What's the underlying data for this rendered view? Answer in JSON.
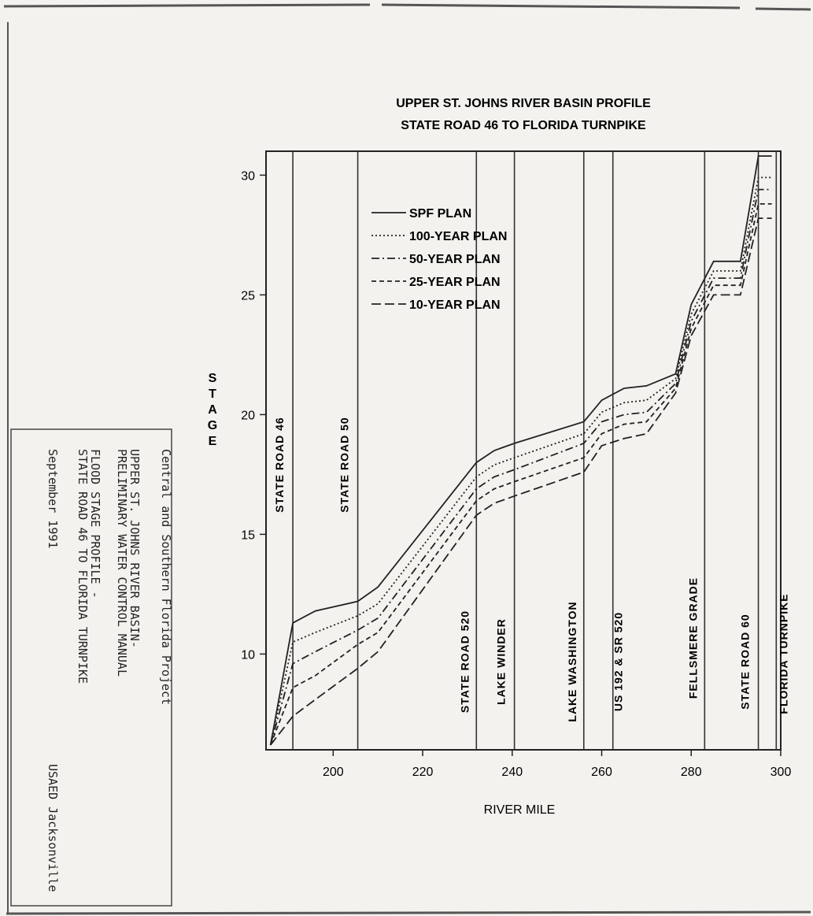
{
  "title_block": {
    "line1": "Central and Southern Florida Project",
    "line2": "UPPER ST. JOHNS RIVER BASIN-",
    "line3": "PRELIMINARY WATER CONTROL MANUAL",
    "line4": "FLOOD STAGE PROFILE -",
    "line5": "STATE ROAD 46 TO FLORIDA TURNPIKE",
    "date": "September 1991",
    "agency": "USAED Jacksonville"
  },
  "chart_data": {
    "type": "line",
    "title": "UPPER ST. JOHNS RIVER BASIN PROFILE",
    "subtitle": "STATE ROAD 46 TO FLORIDA TURNPIKE",
    "xlabel": "RIVER MILE",
    "ylabel": "STAGE",
    "xlim": [
      185,
      300
    ],
    "ylim": [
      6,
      31
    ],
    "xticks": [
      200,
      220,
      240,
      260,
      280,
      300
    ],
    "yticks": [
      10,
      15,
      20,
      25,
      30
    ],
    "grid": false,
    "legend_position": "top-left",
    "landmarks": [
      {
        "name": "STATE ROAD 46",
        "x": 191
      },
      {
        "name": "STATE ROAD 50",
        "x": 205.5
      },
      {
        "name": "STATE ROAD 520",
        "x": 232
      },
      {
        "name": "LAKE WINDER",
        "x": 240.5
      },
      {
        "name": "LAKE WASHINGTON",
        "x": 256
      },
      {
        "name": "US 192 & SR 520",
        "x": 262.5
      },
      {
        "name": "FELLSMERE GRADE",
        "x": 283
      },
      {
        "name": "STATE ROAD 60",
        "x": 295
      },
      {
        "name": "FLORIDA TURNPIKE",
        "x": 299
      }
    ],
    "series": [
      {
        "name": "SPF PLAN",
        "dash": "solid",
        "x": [
          186,
          191,
          196,
          205.5,
          210,
          232,
          236,
          240.5,
          256,
          260,
          265,
          270,
          276.5,
          280,
          285,
          291,
          295,
          298
        ],
        "y": [
          6.2,
          11.3,
          11.8,
          12.2,
          12.8,
          18.0,
          18.5,
          18.8,
          19.7,
          20.6,
          21.1,
          21.2,
          21.7,
          24.6,
          26.4,
          26.4,
          30.8,
          30.8
        ]
      },
      {
        "name": "100-YEAR PLAN",
        "dash": "dotted",
        "x": [
          186,
          191,
          196,
          205.5,
          210,
          232,
          236,
          240.5,
          256,
          260,
          265,
          270,
          276.5,
          280,
          285,
          291,
          295,
          298
        ],
        "y": [
          6.2,
          10.5,
          10.9,
          11.6,
          12.1,
          17.4,
          17.9,
          18.2,
          19.2,
          20.1,
          20.5,
          20.6,
          21.5,
          24.2,
          26.0,
          26.0,
          29.9,
          29.9
        ]
      },
      {
        "name": "50-YEAR PLAN",
        "dash": "dash-dot",
        "x": [
          186,
          191,
          196,
          205.5,
          210,
          232,
          236,
          240.5,
          256,
          260,
          265,
          270,
          276.5,
          280,
          285,
          291,
          295,
          298
        ],
        "y": [
          6.2,
          9.6,
          10.1,
          11.0,
          11.5,
          16.9,
          17.4,
          17.7,
          18.8,
          19.7,
          20.0,
          20.1,
          21.3,
          23.9,
          25.7,
          25.7,
          29.4,
          29.4
        ]
      },
      {
        "name": "25-YEAR PLAN",
        "dash": "dashed",
        "x": [
          186,
          191,
          196,
          205.5,
          210,
          232,
          236,
          240.5,
          256,
          260,
          265,
          270,
          276.5,
          280,
          285,
          291,
          295,
          298
        ],
        "y": [
          6.2,
          8.6,
          9.1,
          10.4,
          10.9,
          16.4,
          16.9,
          17.2,
          18.2,
          19.2,
          19.6,
          19.7,
          21.1,
          23.6,
          25.4,
          25.4,
          28.8,
          28.8
        ]
      },
      {
        "name": "10-YEAR PLAN",
        "dash": "long-dash",
        "x": [
          186,
          191,
          196,
          205.5,
          210,
          232,
          236,
          240.5,
          256,
          260,
          265,
          270,
          276.5,
          280,
          285,
          291,
          295,
          298
        ],
        "y": [
          6.2,
          7.4,
          8.1,
          9.4,
          10.1,
          15.8,
          16.3,
          16.6,
          17.6,
          18.7,
          19.0,
          19.2,
          20.9,
          23.3,
          25.0,
          25.0,
          28.2,
          28.2
        ]
      }
    ]
  }
}
